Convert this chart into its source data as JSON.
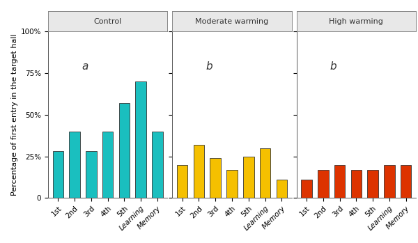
{
  "groups": [
    {
      "label": "Control",
      "stat_label": "a",
      "color": "#1ABFBF",
      "edge_color": "#333333",
      "categories": [
        "1st",
        "2nd",
        "3rd",
        "4th",
        "5th",
        "Learning",
        "Memory"
      ],
      "values": [
        0.28,
        0.4,
        0.28,
        0.4,
        0.57,
        0.7,
        0.4
      ]
    },
    {
      "label": "Moderate warming",
      "stat_label": "b",
      "color": "#F5C000",
      "edge_color": "#333333",
      "categories": [
        "1st",
        "2nd",
        "3rd",
        "4th",
        "5th",
        "Learning",
        "Memory"
      ],
      "values": [
        0.2,
        0.32,
        0.24,
        0.17,
        0.25,
        0.3,
        0.11
      ]
    },
    {
      "label": "High warming",
      "stat_label": "b",
      "color": "#DD3300",
      "edge_color": "#333333",
      "categories": [
        "1st",
        "2nd",
        "3rd",
        "4th",
        "5th",
        "Learning",
        "Memory"
      ],
      "values": [
        0.11,
        0.17,
        0.2,
        0.17,
        0.17,
        0.2,
        0.2
      ]
    }
  ],
  "ylabel": "Percentage of first entry in the target hall",
  "yticks": [
    0.0,
    0.25,
    0.5,
    0.75,
    1.0
  ],
  "ytick_labels": [
    "0",
    "25%",
    "50%",
    "75%",
    "100%"
  ],
  "ylim": [
    0.0,
    1.0
  ],
  "background_color": "#ffffff",
  "panel_header_color": "#e8e8e8",
  "panel_header_edge_color": "#888888",
  "bar_width": 0.65,
  "stat_label_fontsize": 11,
  "axis_label_fontsize": 8,
  "tick_fontsize": 7.5,
  "panel_label_fontsize": 8
}
